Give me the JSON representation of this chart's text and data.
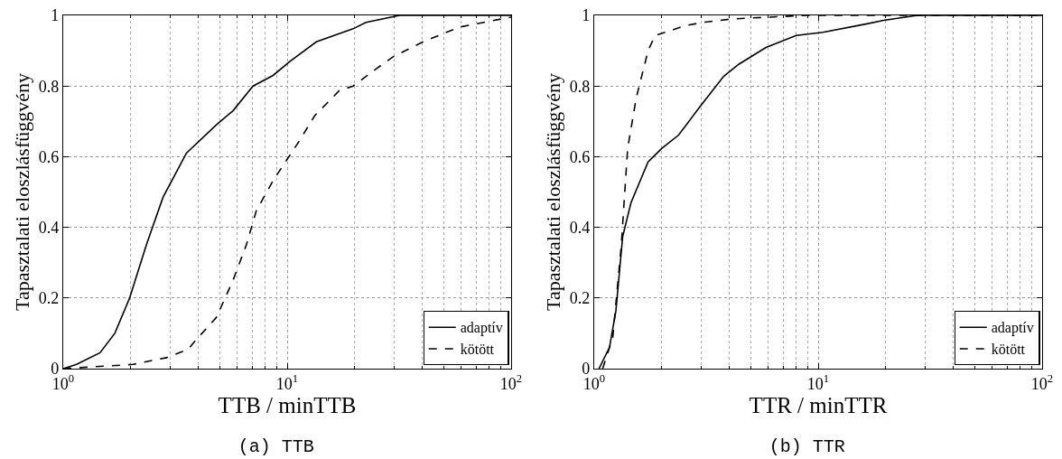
{
  "chart_data": [
    {
      "type": "line",
      "title": "(a) TTB",
      "xlabel": "TTB / minTTB",
      "ylabel": "Tapasztalati eloszlásfüggvény",
      "log": "x",
      "grid": true,
      "legend": "bottom right",
      "xlim": [
        1,
        100
      ],
      "xticks": [
        {
          "value": 1,
          "label": "10$^{0}$"
        },
        {
          "value": 10,
          "label": "10$^{1}$"
        },
        {
          "value": 100,
          "label": "10$^{2}$"
        }
      ],
      "ylim": [
        0,
        1
      ],
      "yticks": [
        0,
        0.2,
        0.4,
        0.6,
        0.8,
        1
      ],
      "series": [
        {
          "name": "adaptív",
          "color": "#000000",
          "line_style": "solid",
          "x": [
            1,
            1.147,
            1.46,
            1.7,
            1.98,
            2.35,
            2.79,
            3.55,
            4.83,
            5.73,
            7.04,
            8.65,
            10.3,
            13.5,
            19.7,
            22.5,
            31.8,
            100
          ],
          "values": [
            0,
            0.012,
            0.045,
            0.1,
            0.2,
            0.35,
            0.485,
            0.61,
            0.69,
            0.73,
            0.8,
            0.83,
            0.87,
            0.925,
            0.962,
            0.98,
            1,
            1
          ]
        },
        {
          "name": "kötött",
          "color": "#000000",
          "line_style": "dashed",
          "x": [
            1,
            2.05,
            2.89,
            3.61,
            3.94,
            4.83,
            5.73,
            6.57,
            7.28,
            8.65,
            9.91,
            11.37,
            13.27,
            17.1,
            19.7,
            25,
            29.6,
            40.4,
            58.9,
            100
          ],
          "values": [
            0,
            0.012,
            0.031,
            0.055,
            0.083,
            0.145,
            0.25,
            0.35,
            0.447,
            0.532,
            0.589,
            0.646,
            0.716,
            0.787,
            0.8,
            0.849,
            0.882,
            0.925,
            0.967,
            0.995
          ]
        }
      ]
    },
    {
      "type": "line",
      "title": "(b) TTR",
      "xlabel": "TTR / minTTR",
      "ylabel": "Tapasztalati eloszlásfüggvény",
      "log": "x",
      "grid": true,
      "legend": "bottom right",
      "xlim": [
        1,
        100
      ],
      "xticks": [
        {
          "value": 1,
          "label": "10$^{0}$"
        },
        {
          "value": 10,
          "label": "10$^{1}$"
        },
        {
          "value": 100,
          "label": "10$^{2}$"
        }
      ],
      "ylim": [
        0,
        1
      ],
      "yticks": [
        0,
        0.2,
        0.4,
        0.6,
        0.8,
        1
      ],
      "series": [
        {
          "name": "adaptív",
          "color": "#000000",
          "line_style": "solid",
          "x": [
            1.05,
            1.17,
            1.25,
            1.34,
            1.46,
            1.74,
            2,
            2.38,
            2.93,
            3.79,
            4.43,
            5.85,
            7.98,
            10.5,
            16.5,
            19.6,
            27.8,
            100
          ],
          "values": [
            0,
            0.06,
            0.164,
            0.374,
            0.47,
            0.585,
            0.623,
            0.661,
            0.737,
            0.828,
            0.862,
            0.909,
            0.943,
            0.952,
            0.976,
            0.986,
            1,
            1
          ]
        },
        {
          "name": "kötött",
          "color": "#000000",
          "line_style": "dashed",
          "x": [
            1.09,
            1.21,
            1.32,
            1.41,
            1.54,
            1.74,
            1.87,
            2.22,
            2.55,
            3.13,
            4.14,
            8.85,
            100
          ],
          "values": [
            0,
            0.088,
            0.346,
            0.623,
            0.766,
            0.9,
            0.943,
            0.958,
            0.971,
            0.981,
            0.99,
            1,
            1
          ]
        }
      ]
    }
  ]
}
